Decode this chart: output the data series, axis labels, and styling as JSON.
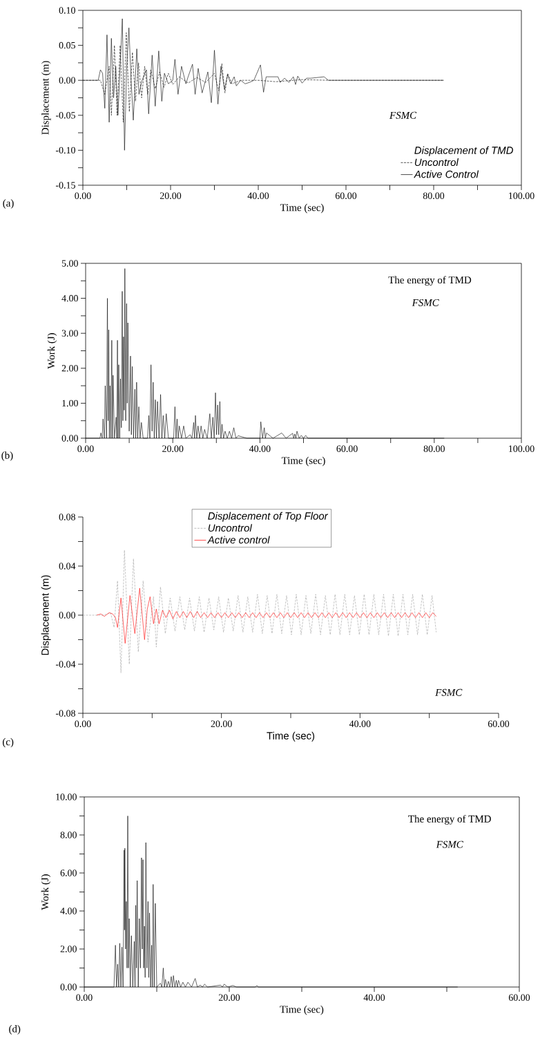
{
  "chart_data": [
    {
      "type": "line",
      "xlabel": "Time (sec)",
      "ylabel": "Displacement (m)",
      "legend_title": "Displacement of TMD",
      "legend": "bottom right",
      "annotations": [
        "FSMC",
        "(a)"
      ],
      "xlim": [
        0,
        100
      ],
      "ylim": [
        -0.15,
        0.1
      ],
      "xticks": [
        {
          "value": 0,
          "label": "0.00"
        },
        {
          "value": 10,
          "label": null
        },
        {
          "value": 20,
          "label": "20.00"
        },
        {
          "value": 30,
          "label": null
        },
        {
          "value": 40,
          "label": "40.00"
        },
        {
          "value": 50,
          "label": null
        },
        {
          "value": 60,
          "label": "60.00"
        },
        {
          "value": 70,
          "label": null
        },
        {
          "value": 80,
          "label": "80.00"
        },
        {
          "value": 90,
          "label": null
        },
        {
          "value": 100,
          "label": "100.00"
        }
      ],
      "yticks": [
        {
          "value": -0.15,
          "label": "-0.15"
        },
        {
          "value": -0.125,
          "label": null
        },
        {
          "value": -0.1,
          "label": "-0.10"
        },
        {
          "value": -0.075,
          "label": null
        },
        {
          "value": -0.05,
          "label": "-0.05"
        },
        {
          "value": -0.025,
          "label": null
        },
        {
          "value": 0,
          "label": "0.00"
        },
        {
          "value": 0.025,
          "label": null
        },
        {
          "value": 0.05,
          "label": "0.05"
        },
        {
          "value": 0.075,
          "label": null
        },
        {
          "value": 0.1,
          "label": "0.10"
        }
      ],
      "series": [
        {
          "name": "Uncontrol",
          "color": "#000000",
          "line_style": "dashed",
          "x": [
            0,
            4,
            5,
            6,
            6.5,
            7.2,
            7.8,
            8.5,
            9.2,
            9.9,
            10.6,
            11.3,
            12,
            12.7,
            13.4,
            14.1,
            14.8,
            15.5,
            16.5,
            17.5,
            18.5,
            19.5,
            20.5,
            22,
            24,
            26,
            28,
            30,
            31,
            31.7,
            32.4,
            33,
            34,
            36,
            40,
            44,
            50,
            56,
            82.3
          ],
          "values": [
            0,
            0,
            -0.02,
            0.02,
            -0.05,
            0.05,
            -0.05,
            0.05,
            -0.06,
            0.068,
            -0.045,
            0.04,
            -0.03,
            0.025,
            -0.025,
            0.02,
            -0.02,
            0.015,
            -0.012,
            0.012,
            -0.01,
            0.01,
            -0.006,
            0.005,
            -0.004,
            0.004,
            -0.003,
            0.01,
            -0.015,
            0.024,
            -0.018,
            0.01,
            -0.005,
            0,
            0,
            -0.002,
            0.001,
            0,
            0
          ]
        },
        {
          "name": "Active Control",
          "color": "#000000",
          "line_style": "solid",
          "x": [
            0,
            3.5,
            4,
            4.5,
            5,
            5.5,
            6,
            6.5,
            7,
            7.5,
            8,
            8.5,
            9,
            9.5,
            10,
            10.5,
            11,
            11.5,
            12.3,
            12.8,
            13.5,
            14.5,
            15,
            15.8,
            16.5,
            17.3,
            18,
            18.6,
            19.5,
            20.5,
            21,
            21.7,
            22.5,
            23.5,
            24,
            25,
            25.6,
            26.3,
            27.2,
            28.5,
            29.3,
            30,
            30.8,
            31.5,
            32.3,
            33,
            33.7,
            34.5,
            35,
            36,
            37,
            38,
            39,
            40.5,
            41.2,
            41.8,
            44.5,
            45,
            46,
            47,
            48,
            48.5,
            49,
            50,
            51,
            52,
            55,
            56,
            82.3
          ],
          "values": [
            0,
            0,
            0.015,
            0.01,
            -0.04,
            0.065,
            -0.06,
            0.06,
            -0.025,
            0.02,
            -0.05,
            0.02,
            0.088,
            -0.1,
            0.02,
            0.075,
            0,
            -0.057,
            0.045,
            -0.02,
            0,
            0.015,
            -0.048,
            0.036,
            -0.037,
            0.042,
            -0.03,
            0.01,
            -0.005,
            0,
            0.03,
            -0.02,
            0.02,
            -0.005,
            0.005,
            0.023,
            -0.02,
            0.017,
            -0.018,
            0.012,
            -0.032,
            0.043,
            -0.034,
            0.02,
            -0.013,
            0.008,
            -0.005,
            0.005,
            -0.008,
            0,
            -0.005,
            -0.003,
            0,
            0.022,
            -0.017,
            0.005,
            0.005,
            -0.003,
            0.003,
            -0.003,
            0.005,
            -0.006,
            0.006,
            -0.004,
            0.003,
            0.003,
            0.005,
            0,
            0
          ]
        }
      ]
    },
    {
      "type": "line",
      "xlabel": "Time (sec)",
      "ylabel": "Work (J)",
      "annotations": [
        "The energy of TMD",
        "FSMC",
        "(b)"
      ],
      "xlim": [
        0,
        100
      ],
      "ylim": [
        0,
        5
      ],
      "xticks": [
        {
          "value": 0,
          "label": "0.00"
        },
        {
          "value": 10,
          "label": null
        },
        {
          "value": 20,
          "label": "20.00"
        },
        {
          "value": 30,
          "label": null
        },
        {
          "value": 40,
          "label": "40.00"
        },
        {
          "value": 50,
          "label": null
        },
        {
          "value": 60,
          "label": "60.00"
        },
        {
          "value": 70,
          "label": null
        },
        {
          "value": 80,
          "label": "80.00"
        },
        {
          "value": 90,
          "label": null
        },
        {
          "value": 100,
          "label": "100.00"
        }
      ],
      "yticks": [
        {
          "value": 0,
          "label": "0.00"
        },
        {
          "value": 0.5,
          "label": null
        },
        {
          "value": 1,
          "label": "1.00"
        },
        {
          "value": 1.5,
          "label": null
        },
        {
          "value": 2,
          "label": "2.00"
        },
        {
          "value": 2.5,
          "label": null
        },
        {
          "value": 3,
          "label": "3.00"
        },
        {
          "value": 3.5,
          "label": null
        },
        {
          "value": 4,
          "label": "4.00"
        },
        {
          "value": 4.5,
          "label": null
        },
        {
          "value": 5,
          "label": "5.00"
        }
      ],
      "series": [
        {
          "color": "#000000",
          "x": [
            0,
            3.3,
            3.5,
            3.8,
            4,
            4.3,
            4.5,
            4.8,
            5,
            5.15,
            5.3,
            5.45,
            5.6,
            5.8,
            6,
            6.15,
            6.3,
            6.6,
            7,
            7.15,
            7.3,
            7.45,
            7.6,
            7.8,
            8,
            8.2,
            8.4,
            8.55,
            8.7,
            8.85,
            9,
            9.2,
            9.4,
            9.55,
            9.7,
            10,
            10.3,
            10.5,
            10.7,
            11,
            11.3,
            11.5,
            11.7,
            11.95,
            12.2,
            12.5,
            12.8,
            13.2,
            14.2,
            14.5,
            14.75,
            15,
            15.25,
            15.5,
            15.75,
            16,
            16.25,
            16.5,
            16.85,
            17.2,
            17.5,
            17.8,
            18.15,
            18.5,
            19,
            20.2,
            20.5,
            20.75,
            21,
            21.25,
            21.5,
            22,
            22.5,
            23,
            24,
            24.4,
            24.8,
            25,
            25.2,
            25.5,
            25.8,
            26.15,
            26.5,
            26.9,
            27.3,
            27.9,
            28.5,
            28.85,
            29.2,
            29.5,
            29.8,
            30.05,
            30.3,
            30.55,
            30.8,
            31.05,
            31.3,
            31.65,
            32,
            32.5,
            33,
            33.5,
            34,
            34.5,
            35,
            37,
            40,
            40.2,
            40.6,
            41,
            41.25,
            41.5,
            43,
            45,
            46,
            47.5,
            47.75,
            48,
            48.25,
            48.5,
            49,
            49.5,
            50,
            50.5,
            51,
            82.3
          ],
          "values": [
            0,
            0,
            0.15,
            0,
            0.55,
            0,
            1.5,
            0,
            4.0,
            0.5,
            3.1,
            0,
            1.5,
            0,
            2.8,
            0,
            1.8,
            0,
            0.6,
            0,
            2.8,
            0,
            2.1,
            0,
            1.7,
            0.3,
            4.2,
            0.5,
            2.9,
            0.8,
            4.85,
            0.5,
            3.85,
            1.0,
            3.3,
            0.2,
            2.35,
            0.1,
            2.05,
            0,
            1.4,
            0,
            1.6,
            0,
            0.9,
            0,
            0.45,
            0,
            0,
            0.65,
            0,
            2.1,
            0.2,
            1.6,
            0,
            1.1,
            0,
            1.05,
            0,
            1.25,
            0,
            0.65,
            0,
            0.7,
            0,
            0,
            0.9,
            0,
            0.55,
            0,
            0.35,
            0,
            0.35,
            0,
            0.1,
            0,
            0.45,
            0,
            0.65,
            0,
            0.35,
            0,
            0.35,
            0,
            0.25,
            0,
            0.7,
            0,
            0.6,
            0,
            1.3,
            0.1,
            0.95,
            0.1,
            1.05,
            0,
            0.4,
            0,
            0.2,
            0,
            0.2,
            0,
            0.3,
            0,
            0.07,
            0,
            0,
            0.47,
            0,
            0.3,
            0,
            0.15,
            0,
            0.15,
            0,
            0.14,
            0,
            0.12,
            0,
            0.2,
            0,
            0.08,
            0,
            0.08,
            0,
            0
          ]
        }
      ]
    },
    {
      "type": "line",
      "xlabel": "Time (sec)",
      "ylabel": "Displacement (m)",
      "legend_title": "Displacement of Top Floor",
      "legend": "top",
      "annotations": [
        "FSMC",
        "(c)"
      ],
      "xlim": [
        0,
        60
      ],
      "ylim": [
        -0.08,
        0.08
      ],
      "xticks": [
        {
          "value": 0,
          "label": "0.00"
        },
        {
          "value": 10,
          "label": null
        },
        {
          "value": 20,
          "label": "20.00"
        },
        {
          "value": 30,
          "label": null
        },
        {
          "value": 40,
          "label": "40.00"
        },
        {
          "value": 50,
          "label": null
        },
        {
          "value": 60,
          "label": "60.00"
        }
      ],
      "yticks": [
        {
          "value": -0.08,
          "label": "-0.08"
        },
        {
          "value": -0.06,
          "label": null
        },
        {
          "value": -0.04,
          "label": "-0.04"
        },
        {
          "value": -0.02,
          "label": null
        },
        {
          "value": 0,
          "label": "0.00"
        },
        {
          "value": 0.02,
          "label": null
        },
        {
          "value": 0.04,
          "label": "0.04"
        },
        {
          "value": 0.06,
          "label": null
        },
        {
          "value": 0.08,
          "label": "0.08"
        }
      ],
      "series": [
        {
          "name": "Uncontrol",
          "color": "#a0a0a0",
          "line_style": "dashed",
          "x": [
            0,
            3,
            4,
            4.5,
            5,
            5.5,
            6,
            6.7,
            7.3,
            8,
            8.7,
            9.4,
            10.2,
            10.6,
            11.2,
            11.9,
            12.6,
            13.3,
            14.0,
            14.7,
            15.4,
            16.1,
            16.8,
            17.5,
            18.2,
            18.9,
            19.6,
            20.3,
            21.0,
            21.7,
            22.4,
            23.1,
            23.8,
            24.5,
            25.2,
            25.9,
            26.6,
            27.3,
            28.0,
            28.7,
            29.4,
            30.1,
            30.8,
            31.5,
            32.2,
            32.9,
            33.6,
            34.3,
            35.0,
            35.7,
            36.4,
            37.1,
            37.8,
            38.5,
            39.2,
            39.9,
            40.6,
            41.3,
            42.0,
            42.7,
            43.4,
            44.1,
            44.8,
            45.5,
            46.2,
            46.9,
            47.6,
            48.3,
            49.0,
            49.7,
            50.4,
            51.0
          ],
          "values": [
            0,
            0,
            0.002,
            -0.01,
            0.028,
            -0.047,
            0.053,
            -0.04,
            0.046,
            -0.03,
            0.028,
            -0.022,
            0.015,
            -0.026,
            0.023,
            -0.015,
            0.014,
            -0.013,
            0.015,
            -0.012,
            0.014,
            -0.013,
            0.015,
            -0.014,
            0.014,
            -0.012,
            0.015,
            -0.014,
            0.014,
            -0.013,
            0.016,
            -0.014,
            0.015,
            -0.014,
            0.017,
            -0.015,
            0.016,
            -0.015,
            0.017,
            -0.015,
            0.016,
            -0.016,
            0.017,
            -0.016,
            0.016,
            -0.015,
            0.017,
            -0.016,
            0.016,
            -0.016,
            0.017,
            -0.016,
            0.017,
            -0.016,
            0.016,
            -0.016,
            0.017,
            -0.016,
            0.017,
            -0.016,
            0.017,
            -0.017,
            0.017,
            -0.017,
            0.017,
            -0.016,
            0.017,
            -0.016,
            0.017,
            -0.016,
            0.016,
            -0.014
          ]
        },
        {
          "name": "Active control",
          "color": "#ff0000",
          "line_style": "solid",
          "x": [
            2,
            2.6,
            3.1,
            3.8,
            4.3,
            4.7,
            5.0,
            5.5,
            6.1,
            6.8,
            7.5,
            8.2,
            8.9,
            9.3,
            9.7,
            10.2,
            10.6,
            11,
            11.5,
            12,
            12.5,
            13,
            13.5,
            14,
            14.5,
            15,
            15.5,
            16,
            16.5,
            17,
            17.5,
            18,
            18.5,
            19,
            19.5,
            20,
            20.5,
            21,
            21.5,
            22,
            22.5,
            23,
            23.5,
            24,
            24.5,
            25,
            25.5,
            26,
            26.5,
            27,
            27.5,
            28,
            28.5,
            29,
            29.5,
            30,
            30.5,
            31,
            31.5,
            32,
            32.5,
            33,
            33.5,
            34,
            34.5,
            35,
            35.5,
            36,
            36.5,
            37,
            37.5,
            38,
            38.5,
            39,
            39.5,
            40,
            40.5,
            41,
            41.5,
            42,
            42.5,
            43,
            43.5,
            44,
            44.5,
            45,
            45.5,
            46,
            46.5,
            47,
            47.5,
            48,
            48.5,
            49,
            49.5,
            50,
            50.5,
            51
          ],
          "values": [
            0,
            0.001,
            -0.001,
            0.002,
            0.001,
            -0.002,
            -0.01,
            0.014,
            -0.023,
            0.016,
            -0.015,
            0.022,
            -0.02,
            0.005,
            0.015,
            -0.007,
            0.005,
            -0.007,
            0.004,
            -0.002,
            0.004,
            -0.003,
            0.003,
            -0.002,
            0.003,
            -0.002,
            0.003,
            -0.002,
            0.003,
            -0.002,
            0.002,
            -0.002,
            0.002,
            -0.002,
            0.002,
            -0.002,
            0.002,
            -0.002,
            0.002,
            -0.002,
            0.002,
            -0.002,
            0.002,
            -0.002,
            0.002,
            -0.002,
            0.002,
            -0.002,
            0.002,
            -0.002,
            0.002,
            -0.002,
            0.002,
            -0.002,
            0.002,
            -0.002,
            0.002,
            -0.002,
            0.002,
            -0.002,
            0.002,
            -0.002,
            0.002,
            -0.002,
            0.002,
            -0.002,
            0.002,
            -0.002,
            0.002,
            -0.002,
            0.002,
            -0.002,
            0.002,
            -0.002,
            0.002,
            -0.002,
            0.002,
            -0.002,
            0.002,
            -0.002,
            0.002,
            -0.002,
            0.002,
            -0.002,
            0.002,
            -0.002,
            0.002,
            -0.002,
            0.002,
            -0.002,
            0.002,
            -0.002,
            0.002,
            -0.002,
            0.002,
            -0.002,
            0.002,
            -0.001
          ]
        }
      ]
    },
    {
      "type": "line",
      "xlabel": "Time (sec)",
      "ylabel": "Work (J)",
      "annotations": [
        "The energy of TMD",
        "FSMC",
        "(d)"
      ],
      "xlim": [
        0,
        60
      ],
      "ylim": [
        0,
        10
      ],
      "xticks": [
        {
          "value": 0,
          "label": "0.00"
        },
        {
          "value": 10,
          "label": null
        },
        {
          "value": 20,
          "label": "20.00"
        },
        {
          "value": 30,
          "label": null
        },
        {
          "value": 40,
          "label": "40.00"
        },
        {
          "value": 50,
          "label": null
        },
        {
          "value": 60,
          "label": "60.00"
        }
      ],
      "yticks": [
        {
          "value": 0,
          "label": "0.00"
        },
        {
          "value": 1,
          "label": null
        },
        {
          "value": 2,
          "label": "2.00"
        },
        {
          "value": 3,
          "label": null
        },
        {
          "value": 4,
          "label": "4.00"
        },
        {
          "value": 5,
          "label": null
        },
        {
          "value": 6,
          "label": "6.00"
        },
        {
          "value": 7,
          "label": null
        },
        {
          "value": 8,
          "label": "8.00"
        },
        {
          "value": 9,
          "label": null
        },
        {
          "value": 10,
          "label": "10.00"
        }
      ],
      "series": [
        {
          "color": "#000000",
          "x": [
            0,
            4.1,
            4.3,
            4.45,
            4.6,
            4.75,
            4.9,
            5.05,
            5.2,
            5.35,
            5.5,
            5.55,
            5.6,
            5.7,
            5.8,
            5.9,
            6.0,
            6.1,
            6.2,
            6.35,
            6.5,
            6.7,
            6.9,
            7.0,
            7.1,
            7.2,
            7.3,
            7.45,
            7.6,
            7.75,
            7.9,
            8.0,
            8.1,
            8.2,
            8.3,
            8.4,
            8.5,
            8.65,
            8.8,
            8.9,
            9.0,
            9.15,
            9.3,
            9.4,
            9.5,
            9.65,
            9.8,
            10.0,
            10.5,
            10.7,
            10.9,
            11.05,
            11.2,
            11.4,
            11.6,
            11.8,
            12,
            12.15,
            12.3,
            12.5,
            12.7,
            12.85,
            13.0,
            13.3,
            13.6,
            13.95,
            14.3,
            14.8,
            15.3,
            15.6,
            16,
            16.3,
            16.6,
            17,
            18.8,
            19.05,
            19.3,
            19.8,
            20.5,
            21,
            23.6,
            23.8,
            24,
            51.5
          ],
          "values": [
            0,
            0,
            2.2,
            0,
            1.2,
            0,
            2.3,
            0,
            2.1,
            0,
            7.2,
            3,
            7.3,
            2,
            4.5,
            1,
            9.0,
            1,
            3.6,
            0,
            2.7,
            0,
            2.4,
            0,
            4.3,
            1,
            5.6,
            0,
            3.6,
            1,
            6.8,
            2,
            6.7,
            1,
            3.2,
            0.5,
            7.6,
            1,
            4.5,
            0.5,
            3.9,
            0,
            2.2,
            0,
            5.4,
            0,
            4.4,
            0,
            0.2,
            0,
            1.0,
            0,
            0.4,
            0,
            0.3,
            0,
            0.55,
            0,
            0.6,
            0,
            0.35,
            0,
            0.35,
            0,
            0.25,
            0,
            0.25,
            0,
            0.45,
            0,
            0.1,
            0,
            0.15,
            0,
            0.1,
            0,
            0.15,
            0,
            0.08,
            0,
            0,
            0.08,
            0,
            0
          ]
        }
      ]
    }
  ]
}
